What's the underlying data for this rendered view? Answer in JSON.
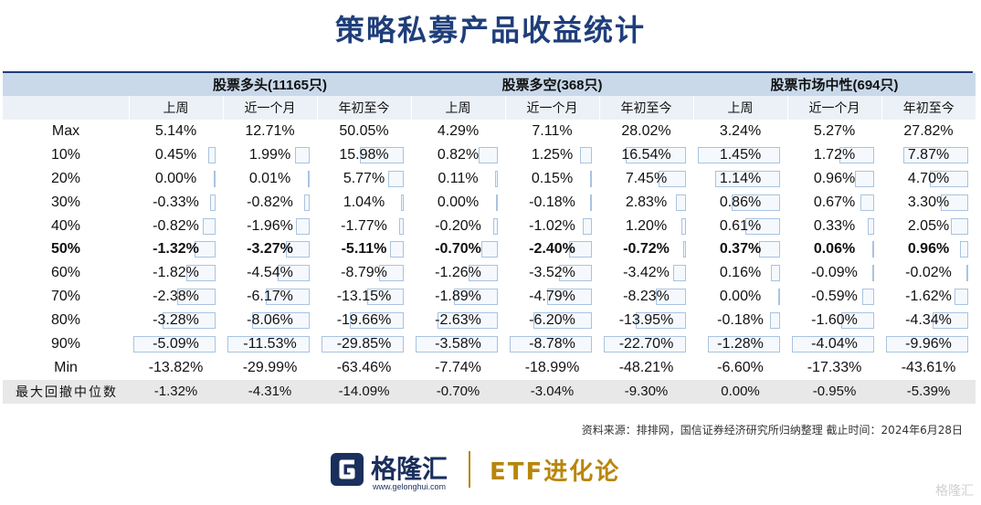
{
  "title": "策略私募产品收益统计",
  "groups": [
    "股票多头(11165只)",
    "股票多空(368只)",
    "股票市场中性(694只)"
  ],
  "subheaders": [
    "上周",
    "近一个月",
    "年初至今"
  ],
  "rows": [
    {
      "label": "Max",
      "values": [
        "5.14%",
        "12.71%",
        "50.05%",
        "4.29%",
        "7.11%",
        "28.02%",
        "3.24%",
        "5.27%",
        "27.82%"
      ]
    },
    {
      "label": "10%",
      "values": [
        "0.45%",
        "1.99%",
        "15.98%",
        "0.82%",
        "1.25%",
        "16.54%",
        "1.45%",
        "1.72%",
        "7.87%"
      ]
    },
    {
      "label": "20%",
      "values": [
        "0.00%",
        "0.01%",
        "5.77%",
        "0.11%",
        "0.15%",
        "7.45%",
        "1.14%",
        "0.96%",
        "4.70%"
      ]
    },
    {
      "label": "30%",
      "values": [
        "-0.33%",
        "-0.82%",
        "1.04%",
        "0.00%",
        "-0.18%",
        "2.83%",
        "0.86%",
        "0.67%",
        "3.30%"
      ]
    },
    {
      "label": "40%",
      "values": [
        "-0.82%",
        "-1.96%",
        "-1.77%",
        "-0.20%",
        "-1.02%",
        "1.20%",
        "0.61%",
        "0.33%",
        "2.05%"
      ]
    },
    {
      "label": "50%",
      "values": [
        "-1.32%",
        "-3.27%",
        "-5.11%",
        "-0.70%",
        "-2.40%",
        "-0.72%",
        "0.37%",
        "0.06%",
        "0.96%"
      ]
    },
    {
      "label": "60%",
      "values": [
        "-1.82%",
        "-4.54%",
        "-8.79%",
        "-1.26%",
        "-3.52%",
        "-3.42%",
        "0.16%",
        "-0.09%",
        "-0.02%"
      ]
    },
    {
      "label": "70%",
      "values": [
        "-2.38%",
        "-6.17%",
        "-13.15%",
        "-1.89%",
        "-4.79%",
        "-8.23%",
        "0.00%",
        "-0.59%",
        "-1.62%"
      ]
    },
    {
      "label": "80%",
      "values": [
        "-3.28%",
        "-8.06%",
        "-19.66%",
        "-2.63%",
        "-6.20%",
        "-13.95%",
        "-0.18%",
        "-1.60%",
        "-4.34%"
      ]
    },
    {
      "label": "90%",
      "values": [
        "-5.09%",
        "-11.53%",
        "-29.85%",
        "-3.58%",
        "-8.78%",
        "-22.70%",
        "-1.28%",
        "-4.04%",
        "-9.96%"
      ]
    },
    {
      "label": "Min",
      "values": [
        "-13.82%",
        "-29.99%",
        "-63.46%",
        "-7.74%",
        "-18.99%",
        "-48.21%",
        "-6.60%",
        "-17.33%",
        "-43.61%"
      ]
    }
  ],
  "footer": {
    "label": "最大回撤中位数",
    "values": [
      "-1.32%",
      "-4.31%",
      "-14.09%",
      "-0.70%",
      "-3.04%",
      "-9.30%",
      "0.00%",
      "-0.95%",
      "-5.39%"
    ]
  },
  "source": "资料来源：排排网，国信证券经济研究所归纳整理  截止时间：2024年6月28日",
  "logo": {
    "name": "格隆汇",
    "url": "www.gelonghui.com"
  },
  "brand": "ETF进化论",
  "watermark": "格隆汇"
}
